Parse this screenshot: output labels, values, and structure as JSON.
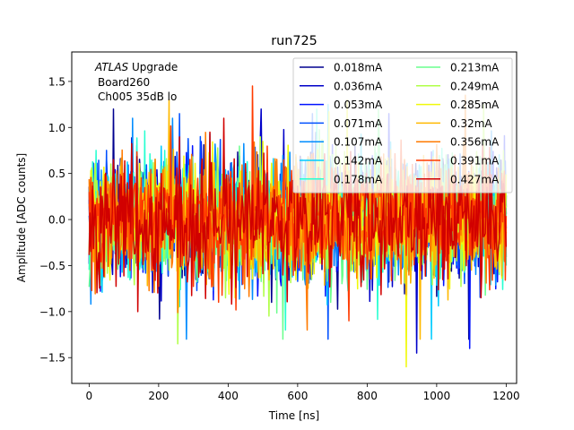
{
  "chart_data": {
    "type": "line",
    "title": "run725",
    "xlabel": "Time [ns]",
    "ylabel": "Amplitude [ADC counts]",
    "xlim": [
      -50,
      1230
    ],
    "ylim": [
      -1.78,
      1.82
    ],
    "xticks": [
      0,
      200,
      400,
      600,
      800,
      1000,
      1200
    ],
    "yticks": [
      -1.5,
      -1.0,
      -0.5,
      0.0,
      0.5,
      1.0,
      1.5
    ],
    "ytick_labels": [
      "−1.5",
      "−1.0",
      "−0.5",
      "0.0",
      "0.5",
      "1.0",
      "1.5"
    ],
    "grid": false,
    "legend_position": "top-right",
    "legend_columns": 2,
    "annotation": {
      "line1_italic": "ATLAS",
      "line1_rest": " Upgrade",
      "line2": "Board260",
      "line3": "Ch005 35dB lo"
    },
    "x_range": [
      0,
      1200
    ],
    "samples": 481,
    "noise_note": "noise-like waveforms; amplitude stats per series",
    "series": [
      {
        "name": "0.018mA",
        "color": "#00008f",
        "sigma": 0.32,
        "min": -1.3,
        "max": 1.2
      },
      {
        "name": "0.036mA",
        "color": "#0000c8",
        "sigma": 0.32,
        "min": -1.45,
        "max": 1.2
      },
      {
        "name": "0.053mA",
        "color": "#0012ff",
        "sigma": 0.32,
        "min": -1.4,
        "max": 1.15
      },
      {
        "name": "0.071mA",
        "color": "#0050ff",
        "sigma": 0.32,
        "min": -1.3,
        "max": 1.15
      },
      {
        "name": "0.107mA",
        "color": "#008cff",
        "sigma": 0.32,
        "min": -1.3,
        "max": 1.1
      },
      {
        "name": "0.142mA",
        "color": "#00ccff",
        "sigma": 0.32,
        "min": -1.3,
        "max": 1.25
      },
      {
        "name": "0.178mA",
        "color": "#26ffd1",
        "sigma": 0.32,
        "min": -1.2,
        "max": 1.2
      },
      {
        "name": "0.213mA",
        "color": "#6aff8d",
        "sigma": 0.32,
        "min": -1.3,
        "max": 1.2
      },
      {
        "name": "0.249mA",
        "color": "#b0ff47",
        "sigma": 0.32,
        "min": -1.35,
        "max": 1.25
      },
      {
        "name": "0.285mA",
        "color": "#f0f90a",
        "sigma": 0.32,
        "min": -1.6,
        "max": 1.3
      },
      {
        "name": "0.32mA",
        "color": "#ffb900",
        "sigma": 0.32,
        "min": -1.3,
        "max": 1.3
      },
      {
        "name": "0.356mA",
        "color": "#ff7a00",
        "sigma": 0.32,
        "min": -1.2,
        "max": 1.35
      },
      {
        "name": "0.391mA",
        "color": "#ff3b00",
        "sigma": 0.32,
        "min": -1.1,
        "max": 1.45
      },
      {
        "name": "0.427mA",
        "color": "#d10000",
        "sigma": 0.32,
        "min": -1.0,
        "max": 1.1
      }
    ]
  }
}
